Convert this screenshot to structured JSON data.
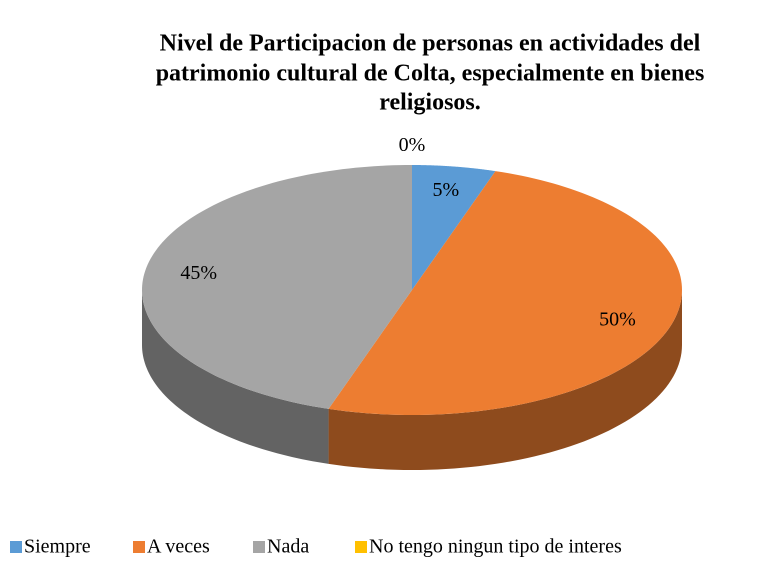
{
  "chart_data": {
    "type": "pie3d",
    "title": [
      "Nivel de Participacion de personas en actividades del",
      "patrimonio cultural de Colta, especialmente en bienes",
      "religiosos."
    ],
    "categories": [
      "Siempre",
      "A veces",
      "Nada",
      "No tengo ningun tipo de interes"
    ],
    "values": [
      5,
      50,
      45,
      0
    ],
    "value_labels": [
      "5%",
      "50%",
      "45%",
      "0%"
    ],
    "colors": [
      "#5b9bd5",
      "#ed7d31",
      "#a5a5a5",
      "#ffc000"
    ],
    "legend": "bottom"
  }
}
